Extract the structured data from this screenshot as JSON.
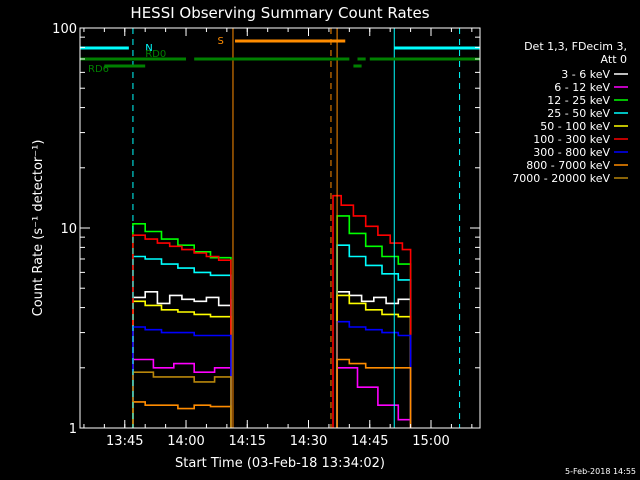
{
  "chart_data": {
    "type": "line",
    "title": "HESSI Observing Summary Count Rates",
    "xlabel": "Start Time (03-Feb-18 13:34:02)",
    "ylabel": "Count Rate (s⁻¹ detector⁻¹)",
    "yscale": "log",
    "ylim": [
      1,
      100
    ],
    "xlim": [
      "13:34:02",
      "15:12:00"
    ],
    "x_ticks": [
      "13:45",
      "14:00",
      "14:15",
      "14:30",
      "14:45",
      "15:00"
    ],
    "y_ticks": [
      "1",
      "10",
      "100"
    ],
    "grid": false,
    "legend_placement": "right",
    "legend_header": [
      "Det 1,3, FDecim 3,",
      "Att 0"
    ],
    "series": [
      {
        "name": "3 - 6 keV",
        "color": "#ffffff",
        "segments": [
          {
            "x": [
              "13:47",
              "13:50",
              "13:53",
              "13:56",
              "13:59",
              "14:02",
              "14:05",
              "14:08",
              "14:11"
            ],
            "y": [
              4.5,
              4.8,
              4.2,
              4.6,
              4.4,
              4.3,
              4.5,
              4.1,
              4.4
            ]
          },
          {
            "x": [
              "14:37",
              "14:40",
              "14:43",
              "14:46",
              "14:49",
              "14:52",
              "14:55"
            ],
            "y": [
              4.8,
              4.6,
              4.3,
              4.5,
              4.2,
              4.4,
              4.1
            ]
          }
        ]
      },
      {
        "name": "6 - 12 keV",
        "color": "#ff00ff",
        "segments": [
          {
            "x": [
              "13:47",
              "13:52",
              "13:57",
              "14:02",
              "14:07",
              "14:11"
            ],
            "y": [
              2.2,
              2.0,
              2.1,
              1.9,
              2.0,
              1.9
            ]
          },
          {
            "x": [
              "14:37",
              "14:42",
              "14:47",
              "14:52",
              "14:55"
            ],
            "y": [
              2.0,
              1.6,
              1.3,
              1.1,
              1.0
            ]
          }
        ]
      },
      {
        "name": "12 - 25 keV",
        "color": "#00ff00",
        "segments": [
          {
            "x": [
              "13:47",
              "13:50",
              "13:54",
              "13:58",
              "14:02",
              "14:06",
              "14:11"
            ],
            "y": [
              10.5,
              9.6,
              8.8,
              8.2,
              7.6,
              7.1,
              6.8
            ]
          },
          {
            "x": [
              "14:37",
              "14:40",
              "14:44",
              "14:48",
              "14:52",
              "14:55"
            ],
            "y": [
              11.5,
              9.4,
              8.1,
              7.2,
              6.6,
              6.2
            ]
          }
        ]
      },
      {
        "name": "25 - 50 keV",
        "color": "#00ffff",
        "segments": [
          {
            "x": [
              "13:47",
              "13:50",
              "13:54",
              "13:58",
              "14:02",
              "14:06",
              "14:11"
            ],
            "y": [
              7.2,
              7.0,
              6.6,
              6.3,
              6.0,
              5.8,
              5.5
            ]
          },
          {
            "x": [
              "14:37",
              "14:40",
              "14:44",
              "14:48",
              "14:52",
              "14:55"
            ],
            "y": [
              8.2,
              7.2,
              6.5,
              5.9,
              5.5,
              5.2
            ]
          }
        ]
      },
      {
        "name": "50 - 100 keV",
        "color": "#ffff00",
        "segments": [
          {
            "x": [
              "13:47",
              "13:50",
              "13:54",
              "13:58",
              "14:02",
              "14:06",
              "14:11"
            ],
            "y": [
              4.3,
              4.1,
              3.9,
              3.8,
              3.7,
              3.6,
              3.5
            ]
          },
          {
            "x": [
              "14:37",
              "14:40",
              "14:44",
              "14:48",
              "14:52",
              "14:55"
            ],
            "y": [
              4.6,
              4.2,
              3.9,
              3.7,
              3.6,
              3.5
            ]
          }
        ]
      },
      {
        "name": "100 - 300 keV",
        "color": "#ff0000",
        "segments": [
          {
            "x": [
              "13:47",
              "13:50",
              "13:53",
              "13:56",
              "13:59",
              "14:02",
              "14:05",
              "14:08",
              "14:11"
            ],
            "y": [
              9.2,
              8.8,
              8.4,
              8.1,
              7.8,
              7.5,
              7.2,
              6.9,
              6.6
            ]
          },
          {
            "x": [
              "14:36",
              "14:38",
              "14:41",
              "14:44",
              "14:47",
              "14:50",
              "14:53",
              "14:55"
            ],
            "y": [
              14.5,
              13.0,
              11.5,
              10.2,
              9.2,
              8.4,
              7.8,
              7.2
            ]
          }
        ]
      },
      {
        "name": "300 - 800 keV",
        "color": "#0000ff",
        "segments": [
          {
            "x": [
              "13:47",
              "13:50",
              "13:54",
              "13:58",
              "14:02",
              "14:06",
              "14:11"
            ],
            "y": [
              3.2,
              3.1,
              3.0,
              3.0,
              2.9,
              2.9,
              2.8
            ]
          },
          {
            "x": [
              "14:37",
              "14:40",
              "14:44",
              "14:48",
              "14:52",
              "14:55"
            ],
            "y": [
              3.4,
              3.2,
              3.1,
              3.0,
              2.9,
              2.9
            ]
          }
        ]
      },
      {
        "name": "800 - 7000 keV",
        "color": "#ff8c00",
        "segments": [
          {
            "x": [
              "13:47",
              "13:50",
              "13:54",
              "13:58",
              "14:02",
              "14:06",
              "14:11"
            ],
            "y": [
              1.35,
              1.3,
              1.3,
              1.25,
              1.3,
              1.28,
              1.3
            ]
          },
          {
            "x": [
              "14:37",
              "14:40",
              "14:44",
              "14:48",
              "14:52",
              "14:55"
            ],
            "y": [
              2.2,
              2.1,
              2.0,
              2.0,
              2.0,
              1.9
            ]
          }
        ]
      },
      {
        "name": "7000 - 20000 keV",
        "color": "#b8860b",
        "segments": [
          {
            "x": [
              "13:47",
              "13:52",
              "13:57",
              "14:02",
              "14:07",
              "14:11"
            ],
            "y": [
              1.9,
              1.8,
              1.8,
              1.7,
              1.8,
              1.7
            ]
          }
        ]
      }
    ],
    "flags": [
      {
        "label": "N",
        "color": "#00ffff",
        "segments": [
          [
            "13:34:02",
            "13:46"
          ],
          [
            "14:51",
            "15:12"
          ]
        ]
      },
      {
        "label": "S",
        "color": "#ff8c00",
        "segments": [
          [
            "14:12",
            "14:39"
          ]
        ]
      },
      {
        "label": "RD0",
        "color": "#008000",
        "segments": [
          [
            "13:34:02",
            "14:00"
          ],
          [
            "14:02",
            "14:40"
          ],
          [
            "14:42",
            "14:44"
          ],
          [
            "14:45",
            "15:12"
          ]
        ]
      },
      {
        "label": "RD6",
        "color": "#008000",
        "segments": [
          [
            "13:40",
            "13:50"
          ],
          [
            "14:41",
            "14:43"
          ]
        ]
      }
    ],
    "markers": [
      {
        "x": "13:47",
        "color": "#00ffff",
        "style": "dashed"
      },
      {
        "x": "14:11:30",
        "color": "#ff8c00",
        "style": "solid"
      },
      {
        "x": "14:35:30",
        "color": "#ff8c00",
        "style": "dashed"
      },
      {
        "x": "14:37",
        "color": "#ff8c00",
        "style": "solid"
      },
      {
        "x": "14:51",
        "color": "#00ffff",
        "style": "solid"
      },
      {
        "x": "15:07",
        "color": "#00ffff",
        "style": "dashed"
      }
    ]
  },
  "footer": {
    "date_stamp": "5-Feb-2018 14:55"
  }
}
